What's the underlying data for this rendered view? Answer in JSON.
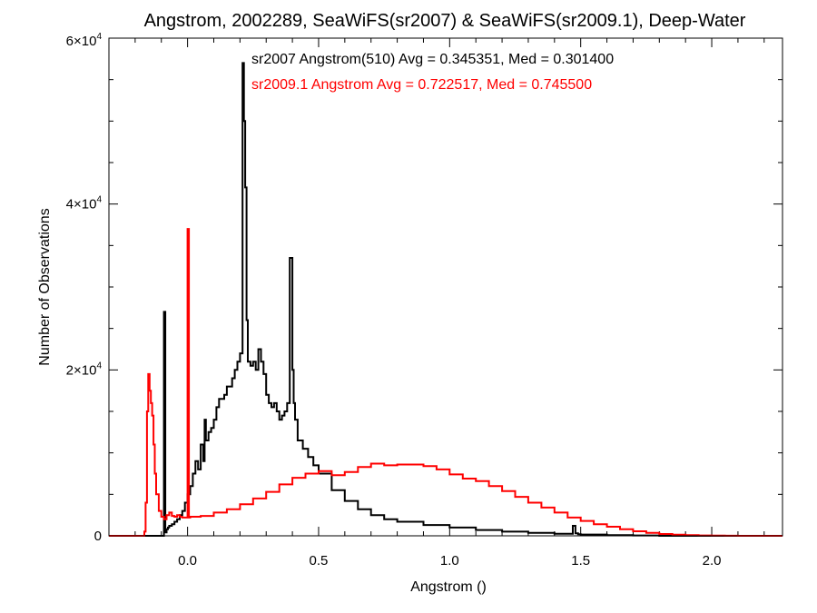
{
  "chart_data": {
    "type": "line",
    "title": "Angstrom, 2002289, SeaWiFS(sr2007) & SeaWiFS(sr2009.1), Deep-Water",
    "xlabel": "Angstrom ()",
    "ylabel": "Number of Observations",
    "xlim": [
      -0.3,
      2.27
    ],
    "ylim": [
      0,
      60000
    ],
    "x_ticks": [
      0.0,
      0.5,
      1.0,
      1.5,
      2.0
    ],
    "x_tick_labels": [
      "0.0",
      "0.5",
      "1.0",
      "1.5",
      "2.0"
    ],
    "y_ticks": [
      {
        "value": 0,
        "mantissa": "0",
        "exponent": ""
      },
      {
        "value": 20000,
        "mantissa": "2×10",
        "exponent": "4"
      },
      {
        "value": 40000,
        "mantissa": "4×10",
        "exponent": "4"
      },
      {
        "value": 60000,
        "mantissa": "6×10",
        "exponent": "4"
      }
    ],
    "grid": false,
    "annotations": [
      {
        "text": "sr2007 Angstrom(510) Avg = 0.345351, Med = 0.301400",
        "color": "#000000"
      },
      {
        "text": "sr2009.1 Angstrom Avg = 0.722517, Med = 0.745500",
        "color": "#ff0000"
      }
    ],
    "series": [
      {
        "color": "#000000",
        "style": "step",
        "x": [
          -0.3,
          -0.09,
          -0.085,
          -0.08,
          -0.075,
          -0.07,
          -0.06,
          -0.05,
          -0.04,
          -0.03,
          -0.02,
          -0.01,
          0.0,
          0.01,
          0.02,
          0.03,
          0.04,
          0.05,
          0.06,
          0.065,
          0.07,
          0.08,
          0.09,
          0.1,
          0.11,
          0.12,
          0.13,
          0.14,
          0.15,
          0.16,
          0.17,
          0.18,
          0.19,
          0.2,
          0.21,
          0.215,
          0.22,
          0.225,
          0.23,
          0.24,
          0.25,
          0.26,
          0.27,
          0.28,
          0.29,
          0.3,
          0.31,
          0.32,
          0.33,
          0.34,
          0.35,
          0.36,
          0.37,
          0.38,
          0.39,
          0.4,
          0.405,
          0.41,
          0.42,
          0.44,
          0.46,
          0.48,
          0.5,
          0.55,
          0.6,
          0.65,
          0.7,
          0.75,
          0.8,
          0.9,
          1.0,
          1.1,
          1.2,
          1.3,
          1.4,
          1.47,
          1.48,
          1.49,
          1.5,
          1.6,
          1.7,
          1.8,
          2.27
        ],
        "y": [
          0,
          27000,
          400,
          800,
          1000,
          1200,
          1400,
          1700,
          2000,
          2500,
          3000,
          4000,
          5000,
          6000,
          7500,
          9000,
          8000,
          11000,
          9000,
          14000,
          11500,
          12500,
          13000,
          14000,
          15500,
          16500,
          16500,
          17000,
          18000,
          18000,
          19000,
          20000,
          21000,
          22000,
          57000,
          50000,
          42000,
          26000,
          21000,
          20500,
          21000,
          20000,
          22500,
          21000,
          19500,
          17000,
          16000,
          15500,
          16000,
          15000,
          14000,
          14500,
          15000,
          16000,
          33500,
          20000,
          16000,
          14000,
          11500,
          10500,
          9500,
          8500,
          7500,
          5500,
          4200,
          3200,
          2500,
          2000,
          1700,
          1300,
          1000,
          700,
          500,
          350,
          250,
          1200,
          300,
          200,
          150,
          80,
          40,
          0,
          0
        ]
      },
      {
        "color": "#ff0000",
        "style": "step",
        "x": [
          -0.3,
          -0.165,
          -0.16,
          -0.155,
          -0.15,
          -0.145,
          -0.14,
          -0.135,
          -0.13,
          -0.125,
          -0.12,
          -0.11,
          -0.1,
          -0.09,
          -0.08,
          -0.07,
          -0.06,
          -0.05,
          -0.04,
          -0.03,
          -0.02,
          -0.01,
          0.0,
          0.005,
          0.01,
          0.05,
          0.1,
          0.15,
          0.2,
          0.25,
          0.3,
          0.35,
          0.4,
          0.45,
          0.5,
          0.55,
          0.6,
          0.65,
          0.7,
          0.75,
          0.8,
          0.85,
          0.9,
          0.95,
          1.0,
          1.05,
          1.1,
          1.15,
          1.2,
          1.25,
          1.3,
          1.35,
          1.4,
          1.45,
          1.5,
          1.55,
          1.6,
          1.65,
          1.7,
          1.75,
          1.8,
          1.85,
          1.9,
          1.95,
          2.0,
          2.05,
          2.1,
          2.15,
          2.27
        ],
        "y": [
          0,
          500,
          4000,
          15000,
          19500,
          17500,
          16000,
          14500,
          11000,
          7500,
          5000,
          3000,
          2300,
          2000,
          2500,
          2800,
          2400,
          2300,
          2500,
          2300,
          2200,
          2200,
          37000,
          2200,
          2300,
          2400,
          2800,
          3200,
          3800,
          4500,
          5300,
          6200,
          7000,
          7500,
          7800,
          7300,
          7700,
          8300,
          8700,
          8500,
          8600,
          8600,
          8400,
          8000,
          7400,
          6900,
          6600,
          6000,
          5400,
          4700,
          4000,
          3400,
          2800,
          2200,
          1800,
          1400,
          1100,
          800,
          550,
          350,
          220,
          140,
          80,
          40,
          20,
          10,
          5,
          0,
          0
        ]
      }
    ]
  }
}
